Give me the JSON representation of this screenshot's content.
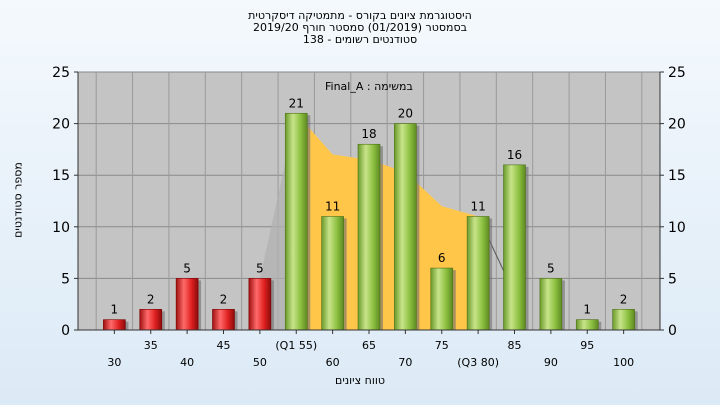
{
  "header": {
    "line1": "היסטוגרמת ציונים בקורס - מתמטיקה דיסקרטית",
    "line2": "בסמסטר  (01/2019)  סמסטר חורף 2019/20",
    "line3": "סטודנטים רשומים - 138"
  },
  "colors": {
    "fail_bar": "#e02020",
    "pass_bar": "#8cc040",
    "quartile_area": "#ffc64a",
    "plot_background": "#c4c4c4",
    "page_background": "#e6f0f9"
  },
  "chart_data": {
    "type": "bar",
    "annotation": "במשימה : Final_A",
    "xlabel": "טווח ציונים",
    "ylabel": "מספר סטודנטים",
    "ylim": [
      0,
      25
    ],
    "yticks": [
      0,
      5,
      10,
      15,
      20,
      25
    ],
    "grid": true,
    "legend": "none",
    "categories": [
      "30",
      "35",
      "40",
      "45",
      "50",
      "(Q1 55)",
      "60",
      "65",
      "70",
      "75",
      "(Q3 80)",
      "85",
      "90",
      "95",
      "100"
    ],
    "values": [
      1,
      2,
      5,
      2,
      5,
      21,
      11,
      18,
      20,
      6,
      11,
      16,
      5,
      1,
      2
    ],
    "failing_categories": [
      "30",
      "35",
      "40",
      "45",
      "50"
    ],
    "shaded_area": {
      "name": "interquartile",
      "points": [
        {
          "x": "(Q1 55)",
          "y": 21
        },
        {
          "x": "60",
          "y": 17
        },
        {
          "x": "65",
          "y": 16.5
        },
        {
          "x": "70",
          "y": 15.3
        },
        {
          "x": "75",
          "y": 12
        },
        {
          "x": "(Q3 80)",
          "y": 11
        }
      ]
    },
    "outline_points": [
      {
        "x": "50",
        "y": 5
      },
      {
        "x": "(Q1 55)",
        "y": 21
      },
      {
        "x": "(Q3 80)",
        "y": 11
      },
      {
        "x": "85",
        "y": 3.5
      }
    ]
  }
}
